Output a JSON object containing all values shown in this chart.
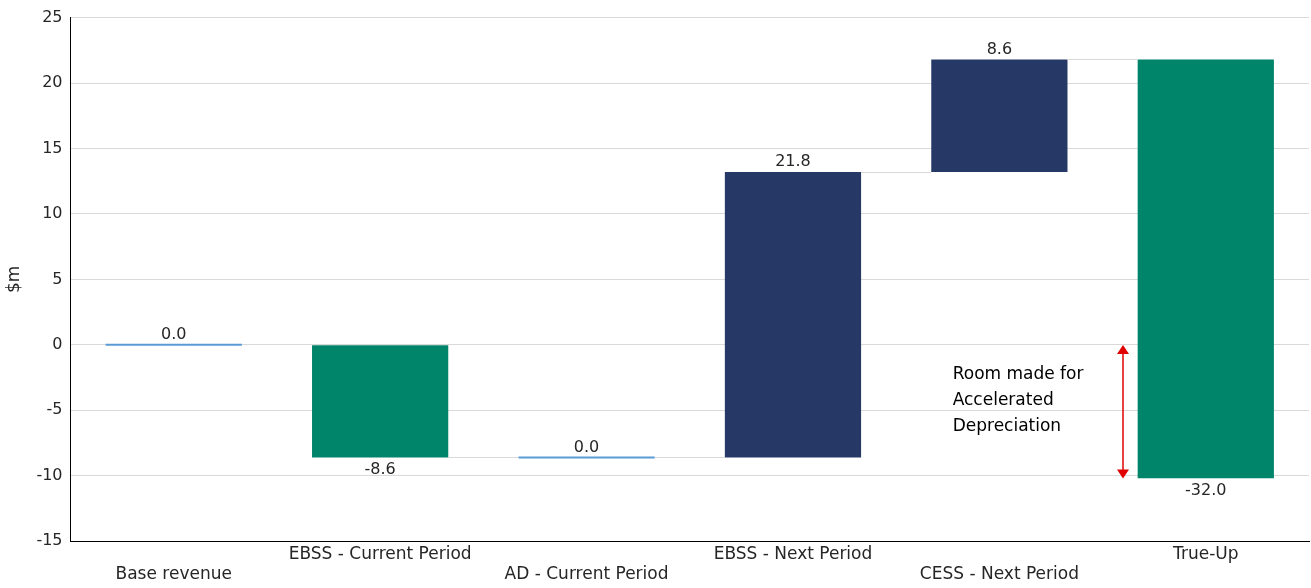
{
  "chart_data": {
    "type": "bar",
    "ylabel": "$m",
    "categories": [
      "Base revenue",
      "EBSS - Current Period",
      "AD - Current Period",
      "EBSS - Next Period",
      "CESS - Next Period",
      "True-Up"
    ],
    "values": [
      0,
      -8.6,
      0,
      21.8,
      8.6,
      -32.0
    ],
    "base": [
      0,
      0,
      -8.6,
      -8.6,
      13.2,
      21.8
    ],
    "colors": [
      "#5b9bd5",
      "#00846a",
      "#5b9bd5",
      "#263966",
      "#263966",
      "#00846a"
    ],
    "value_labels": [
      "0.0",
      "-8.6",
      "0.0",
      "21.8",
      "8.6",
      "-32.0"
    ],
    "ylim": [
      -15,
      25
    ],
    "yticks": [
      -15,
      -10,
      -5,
      0,
      5,
      10,
      15,
      20,
      25
    ],
    "grid": "y",
    "legend": false,
    "annotations": [
      "Room made for Accelerated Depreciation"
    ]
  }
}
